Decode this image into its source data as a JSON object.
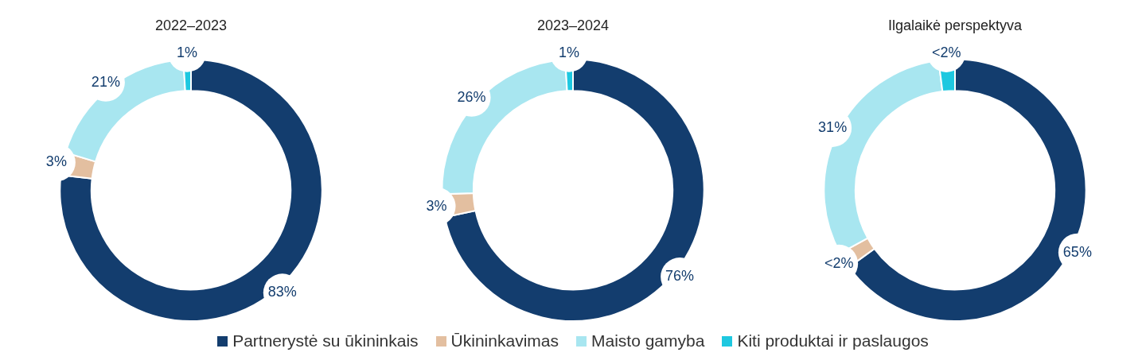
{
  "chart_data": [
    {
      "type": "donut",
      "title": "2022–2023",
      "categories": [
        "Partnerystė su ūkininkais",
        "Ūkininkavimas",
        "Maisto gamyba",
        "Kiti produktai ir paslaugos"
      ],
      "values": [
        83,
        3,
        21,
        1
      ],
      "value_labels": [
        "83%",
        "3%",
        "21%",
        "1%"
      ],
      "colors": [
        "#133d6e",
        "#e3bfa0",
        "#a8e6f0",
        "#1ec8e0"
      ],
      "legend": "bottom"
    },
    {
      "type": "donut",
      "title": "2023–2024",
      "categories": [
        null,
        null,
        null,
        null
      ],
      "values": [
        76,
        3,
        26,
        1
      ],
      "value_labels": [
        "76%",
        "3%",
        "26%",
        "1%"
      ],
      "colors": [
        "#133d6e",
        "#e3bfa0",
        "#a8e6f0",
        "#1ec8e0"
      ]
    },
    {
      "type": "donut",
      "title": "Ilgalaikė perspektyva",
      "categories": [
        null,
        null,
        null,
        null
      ],
      "values": [
        65,
        2,
        31,
        2
      ],
      "value_labels": [
        "65%",
        "<2%",
        "31%",
        "<2%"
      ],
      "colors": [
        "#133d6e",
        "#e3bfa0",
        "#a8e6f0",
        "#1ec8e0"
      ]
    }
  ]
}
